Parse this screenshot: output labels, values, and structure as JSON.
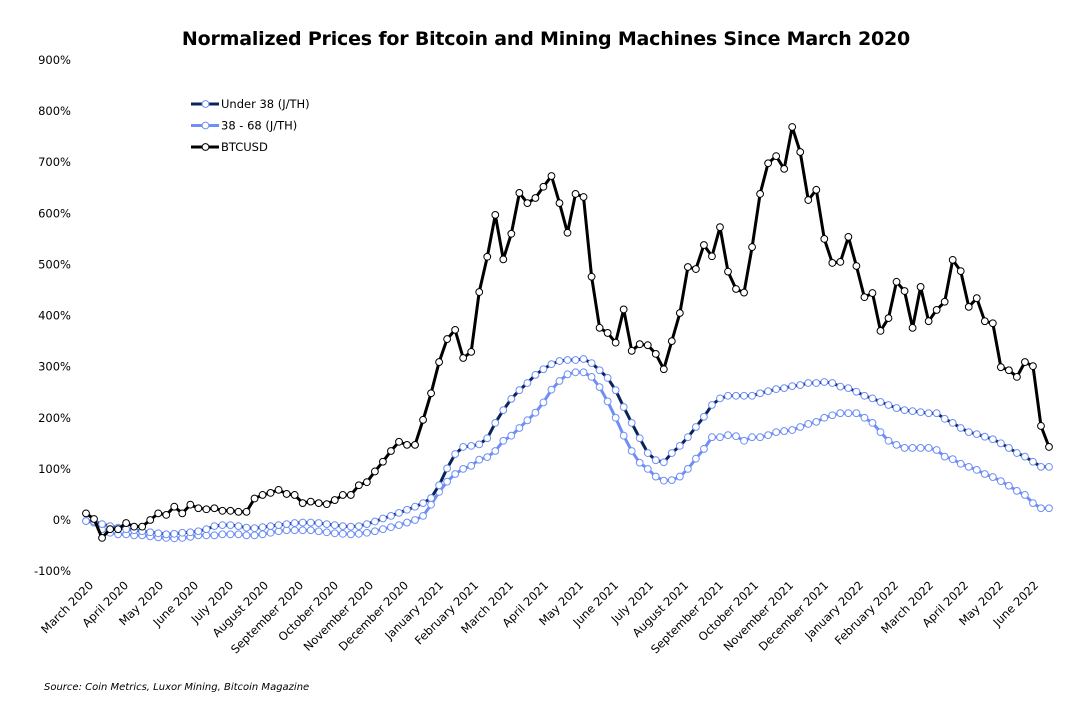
{
  "chart_data": {
    "type": "line",
    "title": "Normalized Prices for Bitcoin and Mining Machines Since March 2020",
    "xlabel": "",
    "ylabel": "",
    "ylim": [
      -100,
      900
    ],
    "y_ticks": [
      "-100%",
      "0%",
      "100%",
      "200%",
      "300%",
      "400%",
      "500%",
      "600%",
      "700%",
      "800%",
      "900%"
    ],
    "y_tick_values": [
      -100,
      0,
      100,
      200,
      300,
      400,
      500,
      600,
      700,
      800,
      900
    ],
    "x_tick_labels": [
      "March 2020",
      "April 2020",
      "May 2020",
      "June 2020",
      "July 2020",
      "August 2020",
      "September 2020",
      "October 2020",
      "November 2020",
      "December 2020",
      "January 2021",
      "February 2021",
      "March 2021",
      "April 2021",
      "May 2021",
      "June 2021",
      "July 2021",
      "August 2021",
      "September 2021",
      "October 2021",
      "November 2021",
      "December 2021",
      "January 2022",
      "February 2022",
      "March 2022",
      "April 2022",
      "May 2022",
      "June 2022"
    ],
    "x_frequency": "weekly",
    "grid": false,
    "legend_position": "top-left",
    "series": [
      {
        "name": "Under 38 (J/TH)",
        "color": "#0b2458",
        "marker_color": "#6f8ff5",
        "values": [
          -2,
          -3,
          -8,
          -12,
          -15,
          -18,
          -20,
          -22,
          -24,
          -26,
          -28,
          -27,
          -25,
          -24,
          -22,
          -18,
          -12,
          -10,
          -10,
          -12,
          -15,
          -16,
          -14,
          -12,
          -10,
          -8,
          -6,
          -5,
          -5,
          -6,
          -8,
          -10,
          -12,
          -13,
          -12,
          -8,
          -3,
          3,
          8,
          14,
          20,
          26,
          33,
          43,
          68,
          101,
          129,
          143,
          145,
          148,
          160,
          190,
          215,
          237,
          254,
          268,
          284,
          295,
          305,
          311,
          313,
          313,
          315,
          307,
          293,
          278,
          254,
          221,
          190,
          160,
          131,
          117,
          113,
          131,
          145,
          162,
          182,
          202,
          225,
          238,
          243,
          243,
          243,
          243,
          248,
          252,
          256,
          258,
          262,
          264,
          268,
          268,
          270,
          268,
          261,
          258,
          251,
          243,
          238,
          231,
          225,
          219,
          215,
          213,
          211,
          209,
          209,
          198,
          190,
          180,
          172,
          168,
          163,
          158,
          150,
          141,
          131,
          124,
          114,
          104,
          104
        ]
      },
      {
        "name": "38 - 68 (J/TH)",
        "color": "#6f8ff5",
        "marker_color": "#6f8ff5",
        "values": [
          -2,
          -5,
          -18,
          -25,
          -28,
          -28,
          -30,
          -30,
          -32,
          -34,
          -35,
          -36,
          -35,
          -33,
          -30,
          -30,
          -30,
          -28,
          -28,
          -28,
          -30,
          -30,
          -28,
          -25,
          -22,
          -20,
          -20,
          -20,
          -20,
          -22,
          -24,
          -26,
          -27,
          -28,
          -27,
          -25,
          -22,
          -18,
          -14,
          -10,
          -5,
          0,
          8,
          30,
          55,
          75,
          90,
          100,
          106,
          118,
          123,
          135,
          155,
          165,
          180,
          195,
          210,
          230,
          255,
          272,
          285,
          289,
          289,
          280,
          260,
          232,
          200,
          165,
          135,
          112,
          100,
          85,
          77,
          78,
          85,
          100,
          120,
          139,
          162,
          162,
          166,
          164,
          155,
          162,
          162,
          166,
          172,
          174,
          176,
          182,
          188,
          192,
          200,
          205,
          209,
          209,
          209,
          200,
          190,
          172,
          155,
          147,
          141,
          141,
          141,
          141,
          137,
          124,
          119,
          110,
          104,
          98,
          90,
          84,
          76,
          67,
          57,
          49,
          33,
          23,
          23
        ]
      },
      {
        "name": "BTCUSD",
        "color": "#000000",
        "marker_color": "#000000",
        "values": [
          13,
          2,
          -35,
          -18,
          -18,
          -6,
          -13,
          -13,
          0,
          13,
          10,
          26,
          13,
          30,
          23,
          21,
          23,
          18,
          18,
          16,
          16,
          42,
          49,
          53,
          59,
          51,
          49,
          33,
          36,
          33,
          31,
          39,
          49,
          49,
          68,
          74,
          95,
          114,
          135,
          153,
          147,
          147,
          196,
          248,
          309,
          354,
          372,
          317,
          329,
          446,
          515,
          597,
          510,
          560,
          640,
          620,
          630,
          652,
          673,
          620,
          562,
          638,
          632,
          476,
          376,
          366,
          347,
          412,
          331,
          344,
          342,
          325,
          295,
          350,
          405,
          495,
          491,
          538,
          516,
          573,
          486,
          452,
          445,
          534,
          638,
          698,
          712,
          687,
          769,
          720,
          626,
          646,
          550,
          503,
          505,
          554,
          497,
          436,
          444,
          370,
          395,
          466,
          448,
          376,
          456,
          389,
          411,
          427,
          509,
          487,
          417,
          434,
          389,
          385,
          299,
          293,
          280,
          309,
          301,
          184,
          143
        ]
      }
    ]
  },
  "source": "Source: Coin Metrics, Luxor Mining, Bitcoin Magazine"
}
